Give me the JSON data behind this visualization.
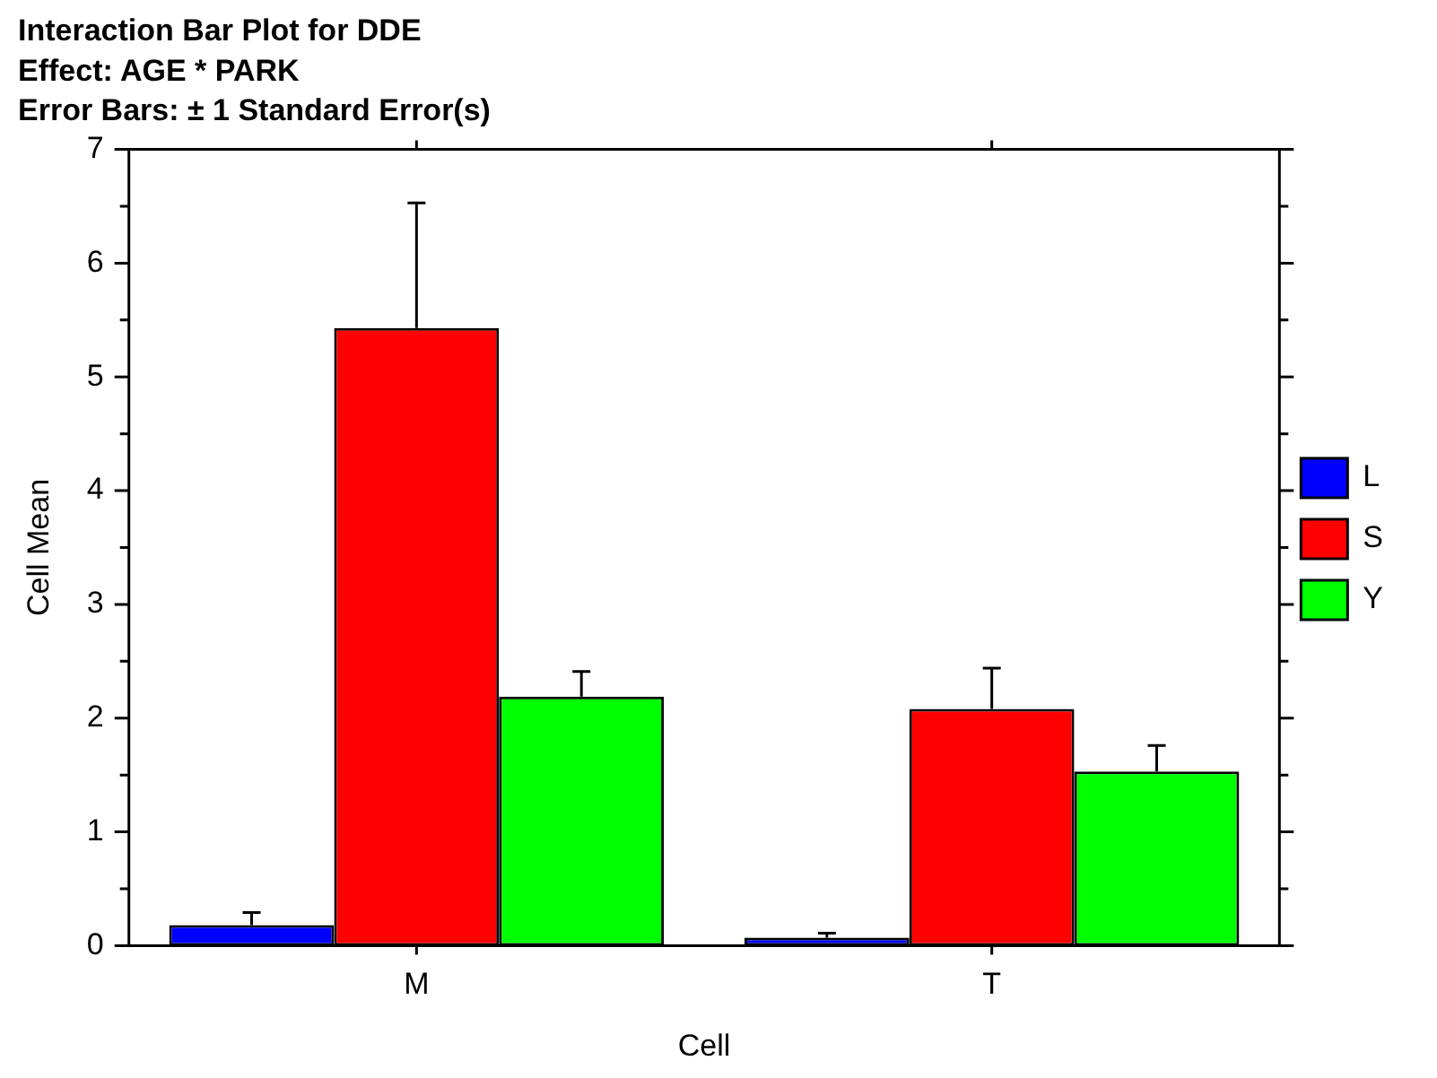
{
  "chart_data": {
    "type": "bar",
    "title": [
      "Interaction Bar Plot for DDE",
      "Effect: AGE * PARK",
      "Error Bars: ± 1 Standard Error(s)"
    ],
    "xlabel": "Cell",
    "ylabel": "Cell Mean",
    "categories": [
      "M",
      "T"
    ],
    "series": [
      {
        "name": "L",
        "color": "#0000ff",
        "values": [
          0.18,
          0.07
        ],
        "errors": [
          [
            0.18,
            0.29
          ],
          [
            0.07,
            0.11
          ]
        ]
      },
      {
        "name": "S",
        "color": "#ff0000",
        "values": [
          5.43,
          2.08
        ],
        "errors": [
          [
            5.43,
            6.53
          ],
          [
            2.08,
            2.44
          ]
        ]
      },
      {
        "name": "Y",
        "color": "#00ff00",
        "values": [
          2.19,
          1.53
        ],
        "errors": [
          [
            2.19,
            2.41
          ],
          [
            1.53,
            1.76
          ]
        ]
      }
    ],
    "ylim": [
      0,
      7
    ],
    "yticks": [
      0,
      {
        "value": 0.5,
        "label": null
      },
      1,
      {
        "value": 1.5,
        "label": null
      },
      2,
      {
        "value": 2.5,
        "label": null
      },
      3,
      {
        "value": 3.5,
        "label": null
      },
      4,
      {
        "value": 4.5,
        "label": null
      },
      5,
      {
        "value": 5.5,
        "label": null
      },
      6,
      {
        "value": 6.5,
        "label": null
      },
      7
    ],
    "grid": false,
    "legend": "right"
  }
}
